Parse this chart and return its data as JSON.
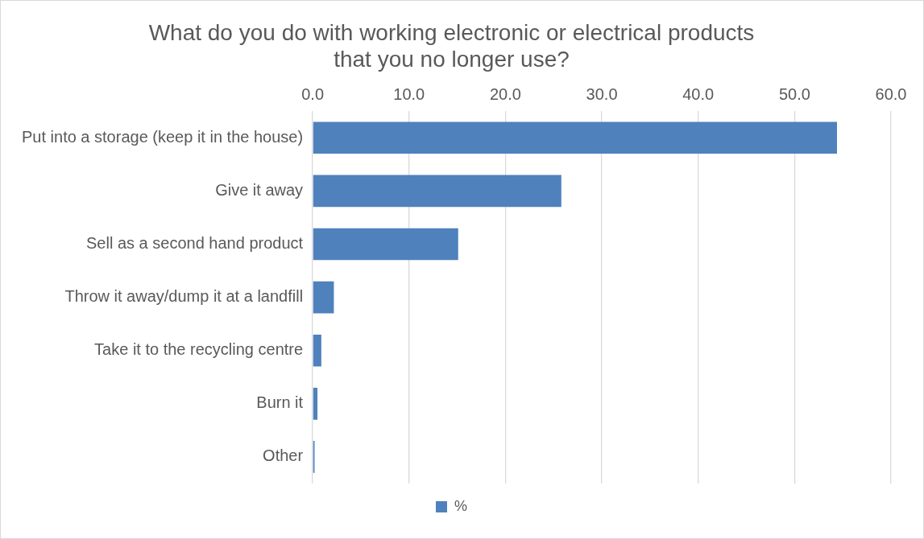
{
  "chart_data": {
    "type": "bar",
    "orientation": "horizontal",
    "title": "What do you do with working electronic or electrical products\nthat you no longer use?",
    "categories": [
      "Put into a storage (keep it in the house)",
      "Give it away",
      "Sell as a second hand product",
      "Throw it away/dump it at a landfill",
      "Take it to the recycling centre",
      "Burn it",
      "Other"
    ],
    "series": [
      {
        "name": "%",
        "color": "#4f81bd",
        "values": [
          54.4,
          25.8,
          15.1,
          2.2,
          0.9,
          0.5,
          0.2
        ]
      }
    ],
    "xlim": [
      0,
      60
    ],
    "xticks": [
      {
        "value": 0,
        "label": "0.0"
      },
      {
        "value": 10,
        "label": "10.0"
      },
      {
        "value": 20,
        "label": "20.0"
      },
      {
        "value": 30,
        "label": "30.0"
      },
      {
        "value": 40,
        "label": "40.0"
      },
      {
        "value": 50,
        "label": "50.0"
      },
      {
        "value": 60,
        "label": "60.0"
      }
    ],
    "grid": "x",
    "legend": "bottom"
  }
}
